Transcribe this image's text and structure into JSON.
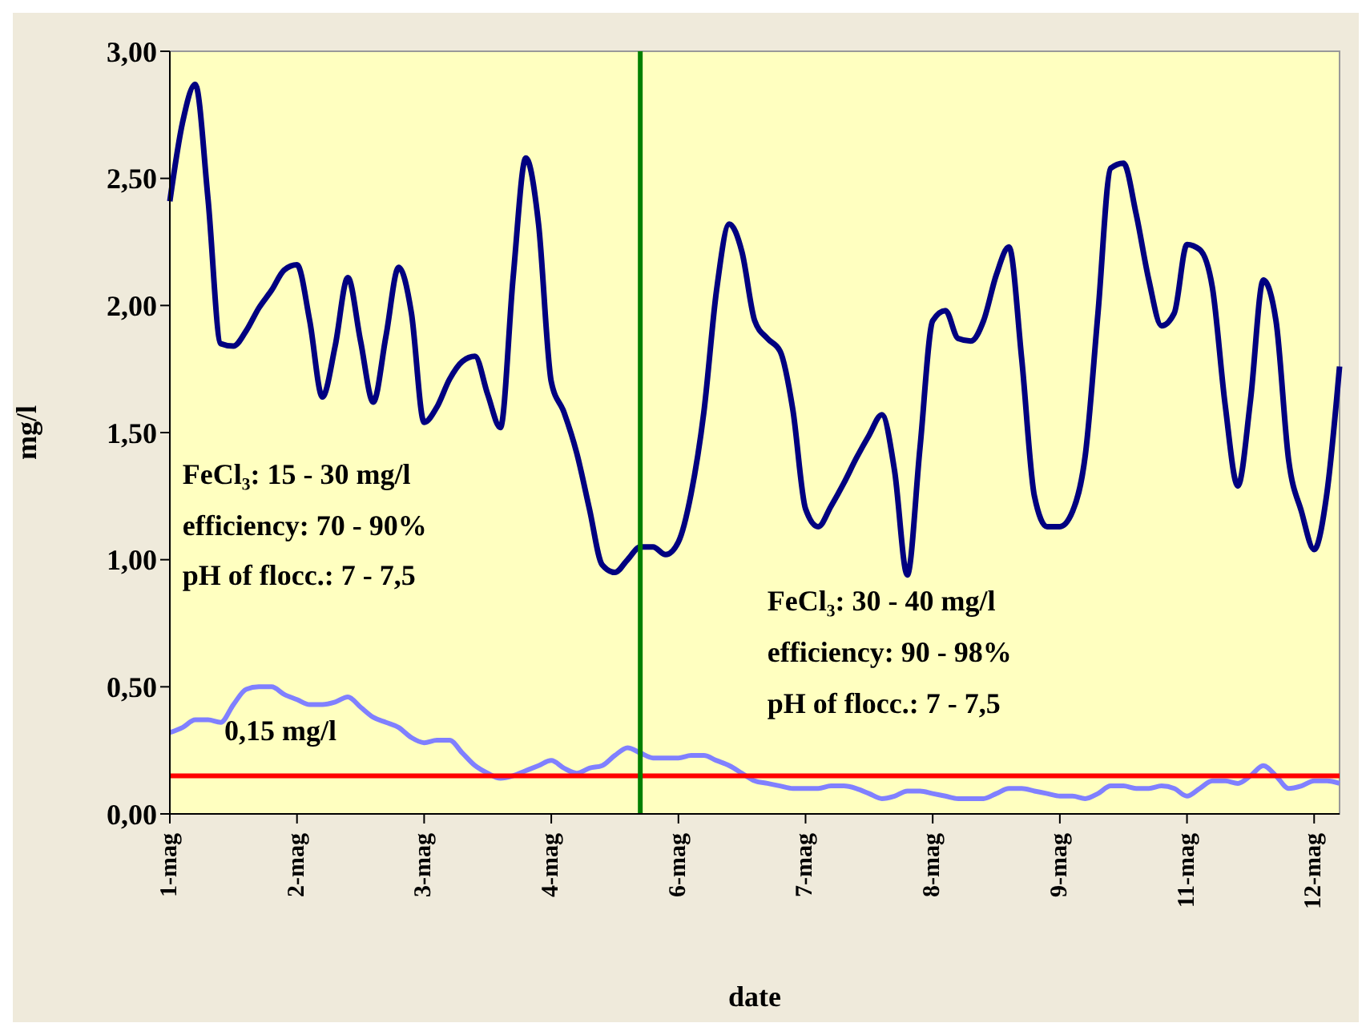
{
  "chart_data": {
    "type": "line",
    "xlabel": "date",
    "ylabel": "mg/l",
    "categories": [
      "1-mag",
      null,
      null,
      null,
      null,
      null,
      null,
      null,
      null,
      null,
      "2-mag",
      null,
      null,
      null,
      null,
      null,
      null,
      null,
      null,
      null,
      "3-mag",
      null,
      null,
      null,
      null,
      null,
      null,
      null,
      null,
      null,
      "4-mag",
      null,
      null,
      null,
      null,
      null,
      null,
      null,
      null,
      null,
      "6-mag",
      null,
      null,
      null,
      null,
      null,
      null,
      null,
      null,
      null,
      "7-mag",
      null,
      null,
      null,
      null,
      null,
      null,
      null,
      null,
      null,
      "8-mag",
      null,
      null,
      null,
      null,
      null,
      null,
      null,
      null,
      null,
      "9-mag",
      null,
      null,
      null,
      null,
      null,
      null,
      null,
      null,
      null,
      "11-mag",
      null,
      null,
      null,
      null,
      null,
      null,
      null,
      null,
      null,
      "12-mag",
      null,
      null
    ],
    "ylim": [
      0,
      3
    ],
    "yticks": [
      {
        "value": 0,
        "label": "0,00"
      },
      {
        "value": 0.5,
        "label": "0,50"
      },
      {
        "value": 1,
        "label": "1,00"
      },
      {
        "value": 1.5,
        "label": "1,50"
      },
      {
        "value": 2,
        "label": "2,00"
      },
      {
        "value": 2.5,
        "label": "2,50"
      },
      {
        "value": 3,
        "label": "3,00"
      }
    ],
    "legend": false,
    "marker": "none",
    "line_style": "solid",
    "series": [
      {
        "color": "#000080",
        "values": [
          2.41,
          2.72,
          2.87,
          2.42,
          1.85,
          1.84,
          1.9,
          1.99,
          2.06,
          2.14,
          2.16,
          1.94,
          1.64,
          1.84,
          2.11,
          1.86,
          1.62,
          1.88,
          2.15,
          1.97,
          1.54,
          1.6,
          1.71,
          1.78,
          1.8,
          1.65,
          1.52,
          2.11,
          2.58,
          2.32,
          1.7,
          1.58,
          1.42,
          1.2,
          0.98,
          0.95,
          1.0,
          1.05,
          1.05,
          1.02,
          1.07,
          1.26,
          1.58,
          2.06,
          2.32,
          2.21,
          1.94,
          1.87,
          1.82,
          1.59,
          1.2,
          1.13,
          1.21,
          1.3,
          1.4,
          1.49,
          1.57,
          1.35,
          0.94,
          1.44,
          1.94,
          1.98,
          1.87,
          1.86,
          1.94,
          2.12,
          2.23,
          1.79,
          1.25,
          1.13,
          1.13,
          1.19,
          1.41,
          1.97,
          2.54,
          2.56,
          2.36,
          2.1,
          1.92,
          1.97,
          2.24,
          2.22,
          2.07,
          1.61,
          1.29,
          1.63,
          2.1,
          1.94,
          1.39,
          1.19,
          1.04,
          1.26,
          1.76
        ]
      },
      {
        "color": "#8080ff",
        "values": [
          0.32,
          0.34,
          0.37,
          0.37,
          0.36,
          0.43,
          0.49,
          0.5,
          0.5,
          0.47,
          0.45,
          0.43,
          0.43,
          0.44,
          0.46,
          0.42,
          0.38,
          0.36,
          0.34,
          0.3,
          0.28,
          0.29,
          0.29,
          0.24,
          0.19,
          0.16,
          0.14,
          0.15,
          0.17,
          0.19,
          0.21,
          0.18,
          0.16,
          0.18,
          0.19,
          0.23,
          0.26,
          0.24,
          0.22,
          0.22,
          0.22,
          0.23,
          0.23,
          0.21,
          0.19,
          0.16,
          0.13,
          0.12,
          0.11,
          0.1,
          0.1,
          0.1,
          0.11,
          0.11,
          0.1,
          0.08,
          0.06,
          0.07,
          0.09,
          0.09,
          0.08,
          0.07,
          0.06,
          0.06,
          0.06,
          0.08,
          0.1,
          0.1,
          0.09,
          0.08,
          0.07,
          0.07,
          0.06,
          0.08,
          0.11,
          0.11,
          0.1,
          0.1,
          0.11,
          0.1,
          0.07,
          0.1,
          0.13,
          0.13,
          0.12,
          0.15,
          0.19,
          0.15,
          0.1,
          0.11,
          0.13,
          0.13,
          0.12
        ]
      }
    ],
    "ref_lines": [
      {
        "axis": "y",
        "value": 0.15,
        "label": "0,15 mg/l",
        "color": "#ff0000"
      }
    ],
    "annotations": [
      "FeCl₃: 15 - 30 mg/l",
      "efficiency: 70 - 90%",
      "pH of flocc.: 7 - 7,5",
      "FeCl₃: 30 - 40 mg/l",
      "efficiency: 90 - 98%",
      "pH of flocc.: 7 - 7,5"
    ]
  }
}
